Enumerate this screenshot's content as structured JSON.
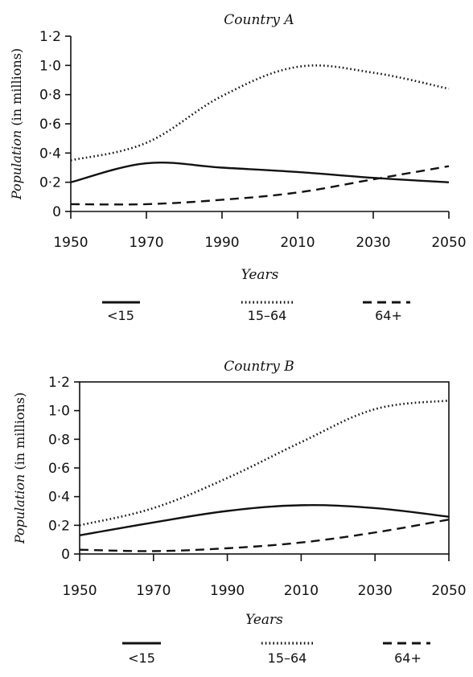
{
  "chart_data": [
    {
      "type": "line",
      "title": "Country A",
      "xlabel": "Years",
      "ylabel_italic": "Population",
      "ylabel_rest": " (in millions)",
      "xlim": [
        1950,
        2050
      ],
      "ylim": [
        0,
        1.2
      ],
      "xticks": [
        1950,
        1970,
        1990,
        2010,
        2030,
        2050
      ],
      "yticks": [
        0,
        0.2,
        0.4,
        0.6,
        0.8,
        1.0,
        1.2
      ],
      "ytick_labels": [
        "0",
        "0·2",
        "0·4",
        "0·6",
        "0·8",
        "1·0",
        "1·2"
      ],
      "frame": "open",
      "grid": false,
      "legend_position": "bottom",
      "series": [
        {
          "name": "<15",
          "style": "solid",
          "x": [
            1950,
            1970,
            1990,
            2010,
            2030,
            2050
          ],
          "y": [
            0.2,
            0.33,
            0.3,
            0.27,
            0.23,
            0.2
          ]
        },
        {
          "name": "15–64",
          "style": "dotted",
          "x": [
            1950,
            1970,
            1990,
            2010,
            2030,
            2050
          ],
          "y": [
            0.35,
            0.47,
            0.79,
            0.99,
            0.95,
            0.84
          ]
        },
        {
          "name": "64+",
          "style": "dashed",
          "x": [
            1950,
            1970,
            1990,
            2010,
            2030,
            2050
          ],
          "y": [
            0.05,
            0.05,
            0.08,
            0.13,
            0.22,
            0.31
          ]
        }
      ]
    },
    {
      "type": "line",
      "title": "Country B",
      "xlabel": "Years",
      "ylabel_italic": "Population",
      "ylabel_rest": " (in millions)",
      "xlim": [
        1950,
        2050
      ],
      "ylim": [
        0,
        1.2
      ],
      "xticks": [
        1950,
        1970,
        1990,
        2010,
        2030,
        2050
      ],
      "yticks": [
        0,
        0.2,
        0.4,
        0.6,
        0.8,
        1.0,
        1.2
      ],
      "ytick_labels": [
        "0",
        "0·2",
        "0·4",
        "0·6",
        "0·8",
        "1·0",
        "1·2"
      ],
      "frame": "box",
      "grid": false,
      "legend_position": "bottom",
      "series": [
        {
          "name": "<15",
          "style": "solid",
          "x": [
            1950,
            1970,
            1990,
            2010,
            2030,
            2050
          ],
          "y": [
            0.13,
            0.22,
            0.3,
            0.34,
            0.32,
            0.26
          ]
        },
        {
          "name": "15–64",
          "style": "dotted",
          "x": [
            1950,
            1970,
            1990,
            2010,
            2030,
            2050
          ],
          "y": [
            0.2,
            0.32,
            0.53,
            0.78,
            1.01,
            1.07
          ]
        },
        {
          "name": "64+",
          "style": "dashed",
          "x": [
            1950,
            1970,
            1990,
            2010,
            2030,
            2050
          ],
          "y": [
            0.03,
            0.02,
            0.04,
            0.08,
            0.15,
            0.24
          ]
        }
      ]
    }
  ]
}
